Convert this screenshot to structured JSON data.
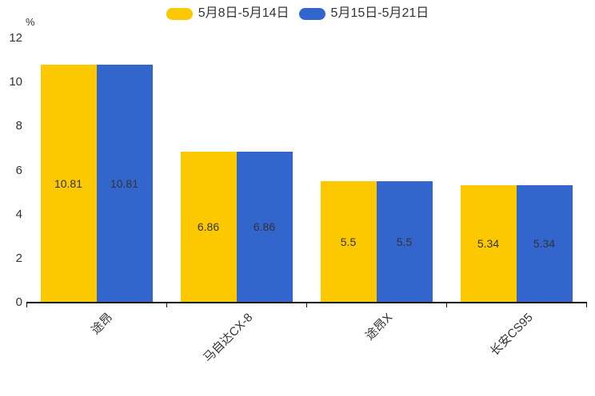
{
  "chart_data": {
    "type": "bar",
    "title": "",
    "categories": [
      "途昂",
      "马自达CX-8",
      "途昂X",
      "长安CS95"
    ],
    "series": [
      {
        "name": "5月8日-5月14日",
        "color": "#FCC800",
        "values": [
          10.81,
          6.86,
          5.5,
          5.34
        ]
      },
      {
        "name": "5月15日-5月21日",
        "color": "#3366CC",
        "values": [
          10.81,
          6.86,
          5.5,
          5.34
        ]
      }
    ],
    "xlabel": "",
    "ylabel": "%",
    "ylim": [
      0,
      12
    ],
    "yticks": [
      0,
      2,
      4,
      6,
      8,
      10,
      12
    ],
    "grid": false,
    "legend_position": "top-center",
    "value_labels": "inside-center"
  },
  "colors": {
    "axis_line": "#111111",
    "text": "#333333",
    "background": "#ffffff"
  }
}
